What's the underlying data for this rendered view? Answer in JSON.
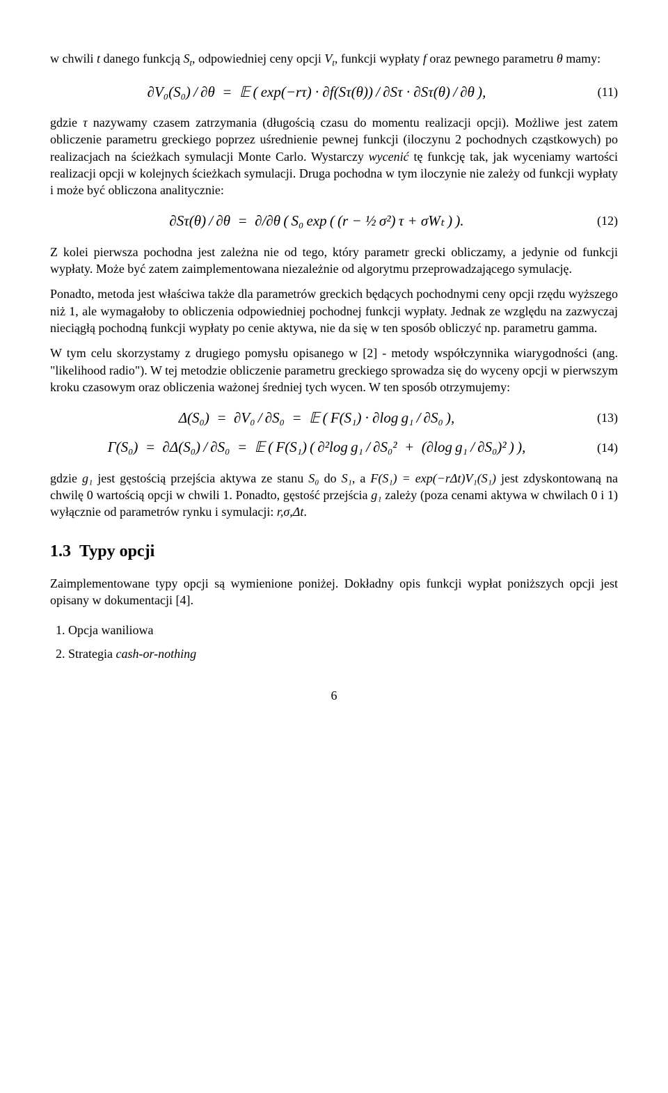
{
  "para1_a": "w chwili ",
  "para1_b": " danego funkcją ",
  "para1_c": ", odpowiedniej ceny opcji ",
  "para1_d": ", funkcji wypłaty ",
  "para1_e": " oraz pewnego parametru ",
  "para1_f": " mamy:",
  "sym_t": "t",
  "sym_St": "S",
  "sym_Vt": "V",
  "sym_f": "f",
  "sym_theta": "θ",
  "eq11": "∂V₀(S₀) / ∂θ  =  𝔼 ( exp(−rτ) · ∂f(Sτ(θ)) / ∂Sτ · ∂Sτ(θ) / ∂θ ),",
  "eq11_num": "(11)",
  "para2_a": "gdzie ",
  "sym_tau": "τ",
  "para2_b": " nazywamy czasem zatrzymania (długością czasu do momentu realizacji opcji). Możliwe jest zatem obliczenie parametru greckiego poprzez uśrednienie pewnej funkcji (iloczynu 2 pochodnych cząstkowych) po realizacjach na ścieżkach symulacji Monte Carlo. Wystarczy ",
  "para2_em": "wycenić",
  "para2_c": " tę funkcję tak, jak wyceniamy wartości realizacji opcji w kolejnych ścieżkach symulacji. Druga pochodna w tym iloczynie nie zależy od funkcji wypłaty i może być obliczona analitycznie:",
  "eq12": "∂Sτ(θ) / ∂θ  =  ∂/∂θ ( S₀ exp ( (r − ½ σ²) τ + σWₜ ) ).",
  "eq12_num": "(12)",
  "para3": "Z kolei pierwsza pochodna jest zależna nie od tego, który parametr grecki obliczamy, a jedynie od funkcji wypłaty. Może być zatem zaimplementowana niezależnie od algorytmu przeprowadzającego symulację.",
  "para4": "Ponadto, metoda jest właściwa także dla parametrów greckich będących pochodnymi ceny opcji rzędu wyższego niż 1, ale wymagałoby to obliczenia odpowiedniej pochodnej funkcji wypłaty. Jednak ze względu na zazwyczaj nieciągłą pochodną funkcji wypłaty po cenie aktywa, nie da się w ten sposób obliczyć np. parametru gamma.",
  "para5": "W tym celu skorzystamy z drugiego pomysłu opisanego w [2] - metody współczynnika wiarygodności (ang. \"likelihood radio\"). W tej metodzie obliczenie parametru greckiego sprowadza się do wyceny opcji w pierwszym kroku czasowym oraz obliczenia ważonej średniej tych wycen. W ten sposób otrzymujemy:",
  "eq13": "Δ(S₀)  =  ∂V₀ / ∂S₀  =  𝔼 ( F(S₁) · ∂log g₁ / ∂S₀ ),",
  "eq13_num": "(13)",
  "eq14": "Γ(S₀)  =  ∂Δ(S₀) / ∂S₀  =  𝔼 ( F(S₁) ( ∂²log g₁ / ∂S₀²  +  (∂log g₁ / ∂S₀)² ) ),",
  "eq14_num": "(14)",
  "para6_a": "gdzie ",
  "sym_g1": "g₁",
  "para6_b": " jest gęstością przejścia aktywa ze stanu ",
  "sym_S0": "S₀",
  "para6_c": " do ",
  "sym_S1": "S₁",
  "para6_d": ", a ",
  "sym_FS1": "F(S₁) = exp(−rΔt)V₁(S₁)",
  "para6_e": " jest zdyskontowaną na chwilę 0 wartością opcji w chwili 1. Ponadto, gęstość przejścia ",
  "para6_f": " zależy (poza cenami aktywa w chwilach 0 i 1) wyłącznie od parametrów rynku i symulacji: ",
  "sym_params": "r,σ,Δt",
  "para6_g": ".",
  "sec_num": "1.3",
  "sec_title": "Typy opcji",
  "para7": "Zaimplementowane typy opcji są wymienione poniżej. Dokładny opis funkcji wypłat poniższych opcji jest opisany w dokumentacji [4].",
  "item1": "Opcja waniliowa",
  "item2_a": "Strategia ",
  "item2_em": "cash-or-nothing",
  "page": "6"
}
